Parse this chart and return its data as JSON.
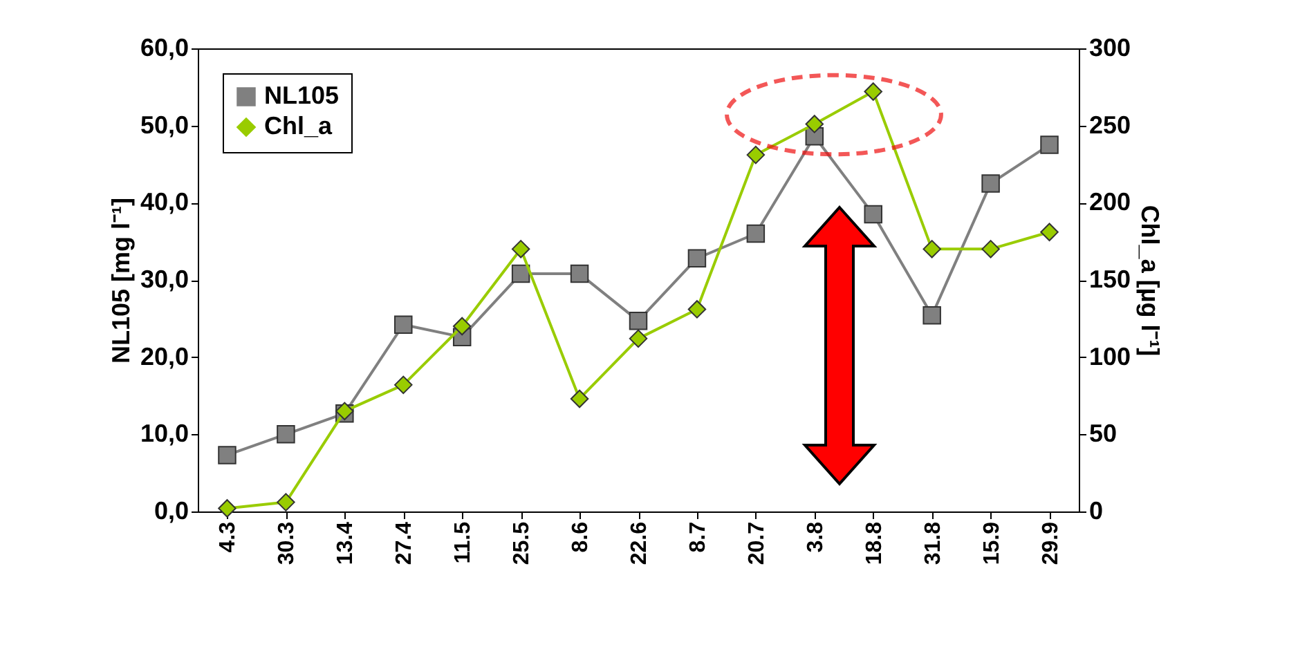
{
  "chart_data": {
    "type": "line",
    "categories": [
      "4.3",
      "30.3",
      "13.4",
      "27.4",
      "11.5",
      "25.5",
      "8.6",
      "22.6",
      "8.7",
      "20.7",
      "3.8",
      "18.8",
      "31.8",
      "15.9",
      "29.9"
    ],
    "series": [
      {
        "name": "NL105",
        "color": "#808080",
        "marker": "square",
        "values": [
          7.3,
          10.0,
          12.7,
          24.2,
          22.6,
          30.8,
          30.8,
          24.7,
          32.8,
          36.0,
          48.6,
          38.5,
          25.4,
          42.5,
          47.5
        ]
      },
      {
        "name": "Chl_a",
        "color": "#99cc00",
        "marker": "diamond",
        "axis": "y2",
        "values": [
          2,
          6,
          65,
          82,
          120,
          170,
          73,
          112,
          131,
          231,
          251,
          272,
          170,
          170,
          181
        ]
      }
    ],
    "ylabel": "NL105 [mg l⁻¹]",
    "y2label": "Chl_a [µg l⁻¹]",
    "ylim": [
      0,
      60
    ],
    "yticks": [
      {
        "value": 0,
        "label": "0,0"
      },
      {
        "value": 10,
        "label": "10,0"
      },
      {
        "value": 20,
        "label": "20,0"
      },
      {
        "value": 30,
        "label": "30,0"
      },
      {
        "value": 40,
        "label": "40,0"
      },
      {
        "value": 50,
        "label": "50,0"
      },
      {
        "value": 60,
        "label": "60,0"
      }
    ],
    "y2lim": [
      0,
      300
    ],
    "y2ticks": [
      0,
      50,
      100,
      150,
      200,
      250,
      300
    ],
    "grid": false,
    "legend": "top left",
    "line_style": "solid"
  }
}
